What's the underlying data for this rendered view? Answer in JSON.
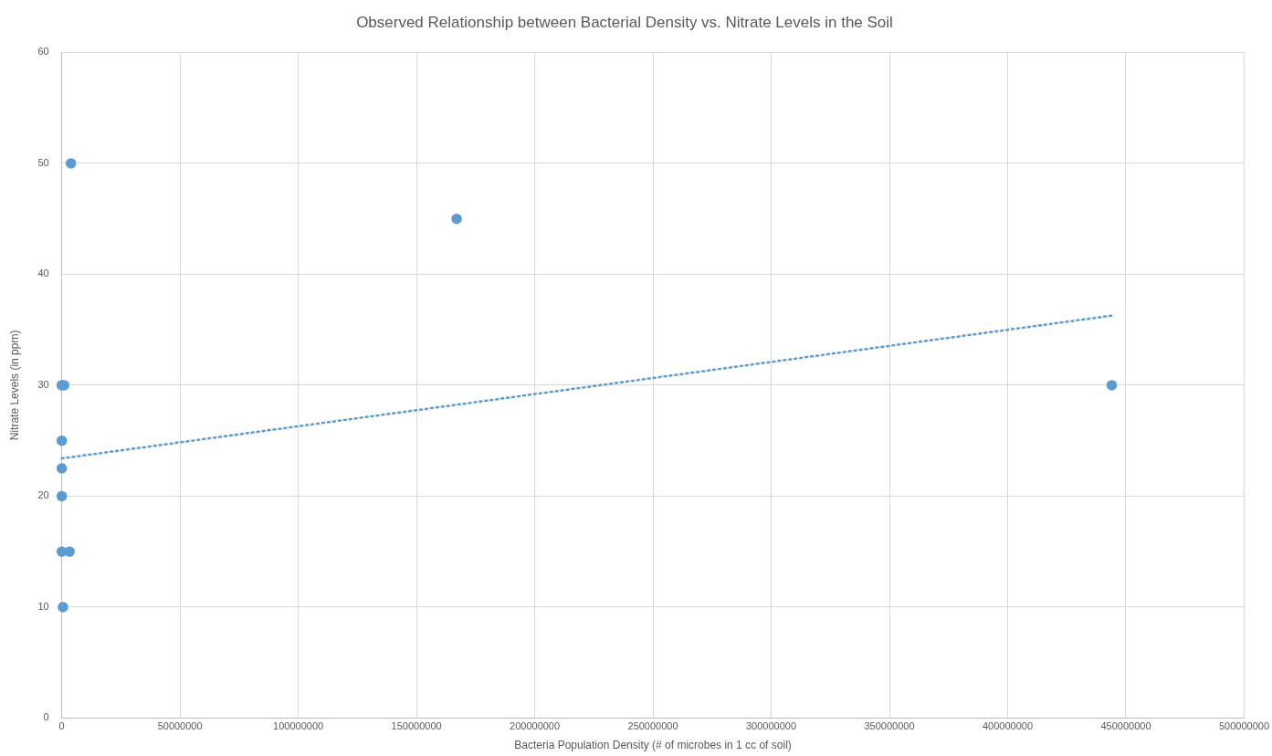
{
  "chart_data": {
    "type": "scatter",
    "title": "Observed Relationship between Bacterial Density vs. Nitrate Levels in the Soil",
    "xlabel": "Bacteria Population Density (# of microbes in 1 cc of soil)",
    "ylabel": "Nitrate Levels (in ppm)",
    "xlim": [
      0,
      500000000
    ],
    "xticks": [
      0,
      50000000,
      100000000,
      150000000,
      200000000,
      250000000,
      300000000,
      350000000,
      400000000,
      450000000,
      500000000
    ],
    "ylim": [
      0,
      60
    ],
    "yticks": [
      0,
      10,
      20,
      30,
      40,
      50,
      60
    ],
    "grid": true,
    "legend": false,
    "series": [
      {
        "type": "scatter",
        "color": "#5b9bd5",
        "marker": "circle",
        "x": [
          3900000,
          167000000,
          444000000,
          0,
          1000000,
          0,
          0,
          0,
          0,
          3300000,
          500000
        ],
        "values": [
          50,
          45,
          30,
          30,
          30,
          25,
          22.5,
          20,
          15,
          15,
          10
        ]
      },
      {
        "type": "line",
        "color": "#5b9bd5",
        "marker": "none",
        "line_style": "dotted",
        "x": [
          0,
          445000000
        ],
        "values": [
          23.4,
          36.3
        ]
      }
    ]
  }
}
